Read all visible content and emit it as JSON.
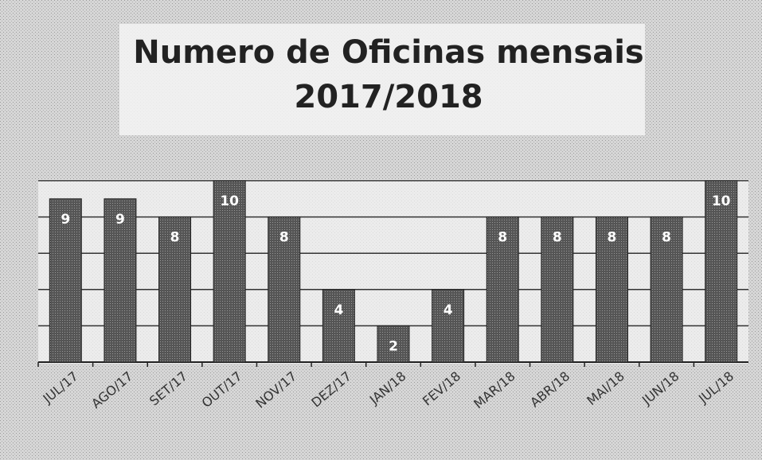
{
  "chart_data": {
    "type": "bar",
    "title": [
      "Numero de Oficinas mensais",
      "2017/2018"
    ],
    "categories": [
      "JUL/17",
      "AGO/17",
      "SET/17",
      "OUT/17",
      "NOV/17",
      "DEZ/17",
      "JAN/18",
      "FEV/18",
      "MAR/18",
      "ABR/18",
      "MAI/18",
      "JUN/18",
      "JUL/18"
    ],
    "values": [
      9,
      9,
      8,
      10,
      8,
      4,
      2,
      4,
      8,
      8,
      8,
      8,
      10
    ],
    "color": "#4a4a4a",
    "ylim": [
      0,
      10
    ],
    "yticks": [
      0,
      2,
      4,
      6,
      8,
      10
    ],
    "grid": true
  }
}
